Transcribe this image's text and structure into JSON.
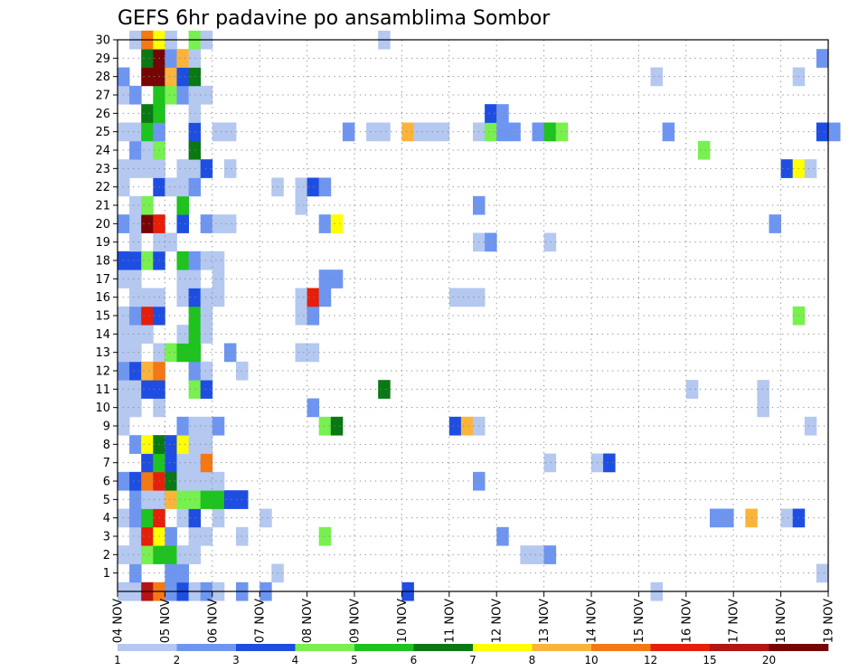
{
  "chart_data": {
    "type": "heatmap",
    "title": "GEFS 6hr padavine po ansamblima Sombor",
    "xlabel": "",
    "ylabel": "",
    "x_ticks": [
      "04 NOV",
      "05 NOV",
      "06 NOV",
      "07 NOV",
      "08 NOV",
      "09 NOV",
      "10 NOV",
      "11 NOV",
      "12 NOV",
      "13 NOV",
      "14 NOV",
      "15 NOV",
      "16 NOV",
      "17 NOV",
      "18 NOV",
      "19 NOV"
    ],
    "y_ticks": [
      "1",
      "2",
      "3",
      "4",
      "5",
      "6",
      "7",
      "8",
      "9",
      "10",
      "11",
      "12",
      "13",
      "14",
      "15",
      "16",
      "17",
      "18",
      "19",
      "20",
      "21",
      "22",
      "23",
      "24",
      "25",
      "26",
      "27",
      "28",
      "29",
      "30"
    ],
    "member_range": [
      0,
      30
    ],
    "time_steps_per_day": 4,
    "grid": true,
    "colorbar": {
      "placement": "bottom",
      "labels": [
        "1",
        "2",
        "3",
        "4",
        "5",
        "6",
        "7",
        "8",
        "10",
        "12",
        "15",
        "20"
      ],
      "colors": [
        "#b4c8f0",
        "#6e96f0",
        "#1e4ee1",
        "#78f050",
        "#1ec31e",
        "#0a7814",
        "#ffff00",
        "#fab43c",
        "#f57814",
        "#e61e0a",
        "#b41414",
        "#780505"
      ]
    },
    "cells": [
      {
        "m": 0,
        "t": 0,
        "c": 1
      },
      {
        "m": 0,
        "t": 1,
        "c": 1
      },
      {
        "m": 0,
        "t": 2,
        "c": 11
      },
      {
        "m": 0,
        "t": 3,
        "c": 9
      },
      {
        "m": 0,
        "t": 4,
        "c": 2
      },
      {
        "m": 0,
        "t": 5,
        "c": 3
      },
      {
        "m": 0,
        "t": 6,
        "c": 1
      },
      {
        "m": 0,
        "t": 7,
        "c": 2
      },
      {
        "m": 0,
        "t": 8,
        "c": 1
      },
      {
        "m": 0,
        "t": 10,
        "c": 2
      },
      {
        "m": 0,
        "t": 12,
        "c": 2
      },
      {
        "m": 0,
        "t": 24,
        "c": 3
      },
      {
        "m": 0,
        "t": 45,
        "c": 1
      },
      {
        "m": 1,
        "t": 1,
        "c": 2
      },
      {
        "m": 1,
        "t": 4,
        "c": 2
      },
      {
        "m": 1,
        "t": 5,
        "c": 2
      },
      {
        "m": 1,
        "t": 13,
        "c": 1
      },
      {
        "m": 1,
        "t": 59,
        "c": 1
      },
      {
        "m": 2,
        "t": 0,
        "c": 1
      },
      {
        "m": 2,
        "t": 1,
        "c": 1
      },
      {
        "m": 2,
        "t": 2,
        "c": 4
      },
      {
        "m": 2,
        "t": 3,
        "c": 5
      },
      {
        "m": 2,
        "t": 4,
        "c": 5
      },
      {
        "m": 2,
        "t": 5,
        "c": 1
      },
      {
        "m": 2,
        "t": 6,
        "c": 1
      },
      {
        "m": 2,
        "t": 34,
        "c": 1
      },
      {
        "m": 2,
        "t": 35,
        "c": 1
      },
      {
        "m": 2,
        "t": 36,
        "c": 2
      },
      {
        "m": 3,
        "t": 1,
        "c": 1
      },
      {
        "m": 3,
        "t": 2,
        "c": 10
      },
      {
        "m": 3,
        "t": 3,
        "c": 7
      },
      {
        "m": 3,
        "t": 4,
        "c": 2
      },
      {
        "m": 3,
        "t": 6,
        "c": 1
      },
      {
        "m": 3,
        "t": 7,
        "c": 1
      },
      {
        "m": 3,
        "t": 10,
        "c": 1
      },
      {
        "m": 3,
        "t": 17,
        "c": 4
      },
      {
        "m": 3,
        "t": 32,
        "c": 2
      },
      {
        "m": 4,
        "t": 0,
        "c": 1
      },
      {
        "m": 4,
        "t": 1,
        "c": 2
      },
      {
        "m": 4,
        "t": 2,
        "c": 5
      },
      {
        "m": 4,
        "t": 3,
        "c": 10
      },
      {
        "m": 4,
        "t": 5,
        "c": 1
      },
      {
        "m": 4,
        "t": 6,
        "c": 3
      },
      {
        "m": 4,
        "t": 8,
        "c": 1
      },
      {
        "m": 4,
        "t": 12,
        "c": 1
      },
      {
        "m": 4,
        "t": 50,
        "c": 2
      },
      {
        "m": 4,
        "t": 51,
        "c": 2
      },
      {
        "m": 4,
        "t": 53,
        "c": 8
      },
      {
        "m": 4,
        "t": 56,
        "c": 1
      },
      {
        "m": 4,
        "t": 57,
        "c": 3
      },
      {
        "m": 5,
        "t": 1,
        "c": 2
      },
      {
        "m": 5,
        "t": 2,
        "c": 1
      },
      {
        "m": 5,
        "t": 3,
        "c": 1
      },
      {
        "m": 5,
        "t": 4,
        "c": 8
      },
      {
        "m": 5,
        "t": 5,
        "c": 4
      },
      {
        "m": 5,
        "t": 6,
        "c": 4
      },
      {
        "m": 5,
        "t": 7,
        "c": 5
      },
      {
        "m": 5,
        "t": 8,
        "c": 5
      },
      {
        "m": 5,
        "t": 9,
        "c": 3
      },
      {
        "m": 5,
        "t": 10,
        "c": 3
      },
      {
        "m": 6,
        "t": 0,
        "c": 2
      },
      {
        "m": 6,
        "t": 1,
        "c": 3
      },
      {
        "m": 6,
        "t": 2,
        "c": 9
      },
      {
        "m": 6,
        "t": 3,
        "c": 10
      },
      {
        "m": 6,
        "t": 4,
        "c": 6
      },
      {
        "m": 6,
        "t": 5,
        "c": 1
      },
      {
        "m": 6,
        "t": 6,
        "c": 1
      },
      {
        "m": 6,
        "t": 7,
        "c": 1
      },
      {
        "m": 6,
        "t": 8,
        "c": 1
      },
      {
        "m": 6,
        "t": 30,
        "c": 2
      },
      {
        "m": 7,
        "t": 2,
        "c": 3
      },
      {
        "m": 7,
        "t": 3,
        "c": 5
      },
      {
        "m": 7,
        "t": 4,
        "c": 3
      },
      {
        "m": 7,
        "t": 5,
        "c": 1
      },
      {
        "m": 7,
        "t": 6,
        "c": 1
      },
      {
        "m": 7,
        "t": 7,
        "c": 9
      },
      {
        "m": 7,
        "t": 36,
        "c": 1
      },
      {
        "m": 7,
        "t": 40,
        "c": 1
      },
      {
        "m": 7,
        "t": 41,
        "c": 3
      },
      {
        "m": 8,
        "t": 1,
        "c": 2
      },
      {
        "m": 8,
        "t": 2,
        "c": 7
      },
      {
        "m": 8,
        "t": 3,
        "c": 6
      },
      {
        "m": 8,
        "t": 4,
        "c": 3
      },
      {
        "m": 8,
        "t": 5,
        "c": 7
      },
      {
        "m": 8,
        "t": 6,
        "c": 1
      },
      {
        "m": 8,
        "t": 7,
        "c": 1
      },
      {
        "m": 9,
        "t": 0,
        "c": 1
      },
      {
        "m": 9,
        "t": 5,
        "c": 2
      },
      {
        "m": 9,
        "t": 6,
        "c": 1
      },
      {
        "m": 9,
        "t": 7,
        "c": 1
      },
      {
        "m": 9,
        "t": 8,
        "c": 2
      },
      {
        "m": 9,
        "t": 17,
        "c": 4
      },
      {
        "m": 9,
        "t": 18,
        "c": 6
      },
      {
        "m": 9,
        "t": 28,
        "c": 3
      },
      {
        "m": 9,
        "t": 29,
        "c": 8
      },
      {
        "m": 9,
        "t": 30,
        "c": 1
      },
      {
        "m": 9,
        "t": 58,
        "c": 1
      },
      {
        "m": 10,
        "t": 0,
        "c": 1
      },
      {
        "m": 10,
        "t": 1,
        "c": 1
      },
      {
        "m": 10,
        "t": 3,
        "c": 1
      },
      {
        "m": 10,
        "t": 16,
        "c": 2
      },
      {
        "m": 10,
        "t": 54,
        "c": 1
      },
      {
        "m": 11,
        "t": 0,
        "c": 1
      },
      {
        "m": 11,
        "t": 1,
        "c": 1
      },
      {
        "m": 11,
        "t": 2,
        "c": 3
      },
      {
        "m": 11,
        "t": 3,
        "c": 3
      },
      {
        "m": 11,
        "t": 6,
        "c": 4
      },
      {
        "m": 11,
        "t": 7,
        "c": 3
      },
      {
        "m": 11,
        "t": 22,
        "c": 6
      },
      {
        "m": 11,
        "t": 48,
        "c": 1
      },
      {
        "m": 11,
        "t": 54,
        "c": 1
      },
      {
        "m": 12,
        "t": 0,
        "c": 2
      },
      {
        "m": 12,
        "t": 1,
        "c": 3
      },
      {
        "m": 12,
        "t": 2,
        "c": 8
      },
      {
        "m": 12,
        "t": 3,
        "c": 9
      },
      {
        "m": 12,
        "t": 6,
        "c": 2
      },
      {
        "m": 12,
        "t": 7,
        "c": 1
      },
      {
        "m": 12,
        "t": 10,
        "c": 1
      },
      {
        "m": 13,
        "t": 0,
        "c": 1
      },
      {
        "m": 13,
        "t": 1,
        "c": 1
      },
      {
        "m": 13,
        "t": 3,
        "c": 1
      },
      {
        "m": 13,
        "t": 4,
        "c": 4
      },
      {
        "m": 13,
        "t": 5,
        "c": 5
      },
      {
        "m": 13,
        "t": 6,
        "c": 5
      },
      {
        "m": 13,
        "t": 9,
        "c": 2
      },
      {
        "m": 13,
        "t": 15,
        "c": 1
      },
      {
        "m": 13,
        "t": 16,
        "c": 1
      },
      {
        "m": 14,
        "t": 0,
        "c": 1
      },
      {
        "m": 14,
        "t": 1,
        "c": 1
      },
      {
        "m": 14,
        "t": 2,
        "c": 1
      },
      {
        "m": 14,
        "t": 5,
        "c": 1
      },
      {
        "m": 14,
        "t": 6,
        "c": 5
      },
      {
        "m": 14,
        "t": 7,
        "c": 1
      },
      {
        "m": 15,
        "t": 0,
        "c": 1
      },
      {
        "m": 15,
        "t": 1,
        "c": 2
      },
      {
        "m": 15,
        "t": 2,
        "c": 10
      },
      {
        "m": 15,
        "t": 3,
        "c": 3
      },
      {
        "m": 15,
        "t": 6,
        "c": 5
      },
      {
        "m": 15,
        "t": 7,
        "c": 1
      },
      {
        "m": 15,
        "t": 15,
        "c": 1
      },
      {
        "m": 15,
        "t": 16,
        "c": 2
      },
      {
        "m": 15,
        "t": 57,
        "c": 4
      },
      {
        "m": 16,
        "t": 1,
        "c": 1
      },
      {
        "m": 16,
        "t": 2,
        "c": 1
      },
      {
        "m": 16,
        "t": 3,
        "c": 1
      },
      {
        "m": 16,
        "t": 5,
        "c": 1
      },
      {
        "m": 16,
        "t": 6,
        "c": 3
      },
      {
        "m": 16,
        "t": 7,
        "c": 1
      },
      {
        "m": 16,
        "t": 8,
        "c": 1
      },
      {
        "m": 16,
        "t": 15,
        "c": 1
      },
      {
        "m": 16,
        "t": 16,
        "c": 10
      },
      {
        "m": 16,
        "t": 17,
        "c": 2
      },
      {
        "m": 16,
        "t": 28,
        "c": 1
      },
      {
        "m": 16,
        "t": 29,
        "c": 1
      },
      {
        "m": 16,
        "t": 30,
        "c": 1
      },
      {
        "m": 17,
        "t": 0,
        "c": 1
      },
      {
        "m": 17,
        "t": 1,
        "c": 1
      },
      {
        "m": 17,
        "t": 5,
        "c": 1
      },
      {
        "m": 17,
        "t": 6,
        "c": 1
      },
      {
        "m": 17,
        "t": 8,
        "c": 1
      },
      {
        "m": 17,
        "t": 17,
        "c": 2
      },
      {
        "m": 17,
        "t": 18,
        "c": 2
      },
      {
        "m": 18,
        "t": 0,
        "c": 3
      },
      {
        "m": 18,
        "t": 1,
        "c": 3
      },
      {
        "m": 18,
        "t": 2,
        "c": 4
      },
      {
        "m": 18,
        "t": 3,
        "c": 3
      },
      {
        "m": 18,
        "t": 5,
        "c": 5
      },
      {
        "m": 18,
        "t": 6,
        "c": 2
      },
      {
        "m": 18,
        "t": 7,
        "c": 1
      },
      {
        "m": 18,
        "t": 8,
        "c": 1
      },
      {
        "m": 19,
        "t": 1,
        "c": 1
      },
      {
        "m": 19,
        "t": 3,
        "c": 1
      },
      {
        "m": 19,
        "t": 4,
        "c": 1
      },
      {
        "m": 19,
        "t": 30,
        "c": 1
      },
      {
        "m": 19,
        "t": 31,
        "c": 2
      },
      {
        "m": 19,
        "t": 36,
        "c": 1
      },
      {
        "m": 20,
        "t": 0,
        "c": 2
      },
      {
        "m": 20,
        "t": 1,
        "c": 1
      },
      {
        "m": 20,
        "t": 2,
        "c": 12
      },
      {
        "m": 20,
        "t": 3,
        "c": 10
      },
      {
        "m": 20,
        "t": 5,
        "c": 3
      },
      {
        "m": 20,
        "t": 7,
        "c": 2
      },
      {
        "m": 20,
        "t": 8,
        "c": 1
      },
      {
        "m": 20,
        "t": 9,
        "c": 1
      },
      {
        "m": 20,
        "t": 17,
        "c": 2
      },
      {
        "m": 20,
        "t": 18,
        "c": 7
      },
      {
        "m": 20,
        "t": 55,
        "c": 2
      },
      {
        "m": 21,
        "t": 1,
        "c": 1
      },
      {
        "m": 21,
        "t": 2,
        "c": 4
      },
      {
        "m": 21,
        "t": 5,
        "c": 5
      },
      {
        "m": 21,
        "t": 15,
        "c": 1
      },
      {
        "m": 21,
        "t": 30,
        "c": 2
      },
      {
        "m": 22,
        "t": 0,
        "c": 1
      },
      {
        "m": 22,
        "t": 3,
        "c": 3
      },
      {
        "m": 22,
        "t": 4,
        "c": 1
      },
      {
        "m": 22,
        "t": 5,
        "c": 1
      },
      {
        "m": 22,
        "t": 6,
        "c": 2
      },
      {
        "m": 22,
        "t": 13,
        "c": 1
      },
      {
        "m": 22,
        "t": 15,
        "c": 1
      },
      {
        "m": 22,
        "t": 16,
        "c": 3
      },
      {
        "m": 22,
        "t": 17,
        "c": 2
      },
      {
        "m": 23,
        "t": 0,
        "c": 1
      },
      {
        "m": 23,
        "t": 1,
        "c": 1
      },
      {
        "m": 23,
        "t": 2,
        "c": 1
      },
      {
        "m": 23,
        "t": 3,
        "c": 1
      },
      {
        "m": 23,
        "t": 5,
        "c": 1
      },
      {
        "m": 23,
        "t": 6,
        "c": 1
      },
      {
        "m": 23,
        "t": 7,
        "c": 3
      },
      {
        "m": 23,
        "t": 9,
        "c": 1
      },
      {
        "m": 23,
        "t": 56,
        "c": 3
      },
      {
        "m": 23,
        "t": 57,
        "c": 7
      },
      {
        "m": 23,
        "t": 58,
        "c": 1
      },
      {
        "m": 24,
        "t": 1,
        "c": 2
      },
      {
        "m": 24,
        "t": 2,
        "c": 1
      },
      {
        "m": 24,
        "t": 3,
        "c": 4
      },
      {
        "m": 24,
        "t": 6,
        "c": 6
      },
      {
        "m": 24,
        "t": 49,
        "c": 4
      },
      {
        "m": 25,
        "t": 0,
        "c": 1
      },
      {
        "m": 25,
        "t": 1,
        "c": 1
      },
      {
        "m": 25,
        "t": 2,
        "c": 5
      },
      {
        "m": 25,
        "t": 3,
        "c": 2
      },
      {
        "m": 25,
        "t": 6,
        "c": 3
      },
      {
        "m": 25,
        "t": 8,
        "c": 1
      },
      {
        "m": 25,
        "t": 9,
        "c": 1
      },
      {
        "m": 25,
        "t": 19,
        "c": 2
      },
      {
        "m": 25,
        "t": 21,
        "c": 1
      },
      {
        "m": 25,
        "t": 22,
        "c": 1
      },
      {
        "m": 25,
        "t": 24,
        "c": 8
      },
      {
        "m": 25,
        "t": 25,
        "c": 1
      },
      {
        "m": 25,
        "t": 26,
        "c": 1
      },
      {
        "m": 25,
        "t": 27,
        "c": 1
      },
      {
        "m": 25,
        "t": 30,
        "c": 1
      },
      {
        "m": 25,
        "t": 31,
        "c": 4
      },
      {
        "m": 25,
        "t": 32,
        "c": 2
      },
      {
        "m": 25,
        "t": 33,
        "c": 2
      },
      {
        "m": 25,
        "t": 35,
        "c": 2
      },
      {
        "m": 25,
        "t": 36,
        "c": 5
      },
      {
        "m": 25,
        "t": 37,
        "c": 4
      },
      {
        "m": 25,
        "t": 46,
        "c": 2
      },
      {
        "m": 25,
        "t": 59,
        "c": 3
      },
      {
        "m": 25,
        "t": 60,
        "c": 2
      },
      {
        "m": 26,
        "t": 2,
        "c": 6
      },
      {
        "m": 26,
        "t": 3,
        "c": 5
      },
      {
        "m": 26,
        "t": 6,
        "c": 1
      },
      {
        "m": 26,
        "t": 31,
        "c": 3
      },
      {
        "m": 26,
        "t": 32,
        "c": 2
      },
      {
        "m": 27,
        "t": 0,
        "c": 1
      },
      {
        "m": 27,
        "t": 1,
        "c": 2
      },
      {
        "m": 27,
        "t": 3,
        "c": 5
      },
      {
        "m": 27,
        "t": 4,
        "c": 4
      },
      {
        "m": 27,
        "t": 5,
        "c": 2
      },
      {
        "m": 27,
        "t": 6,
        "c": 1
      },
      {
        "m": 27,
        "t": 7,
        "c": 1
      },
      {
        "m": 28,
        "t": 0,
        "c": 2
      },
      {
        "m": 28,
        "t": 2,
        "c": 12
      },
      {
        "m": 28,
        "t": 3,
        "c": 12
      },
      {
        "m": 28,
        "t": 4,
        "c": 8
      },
      {
        "m": 28,
        "t": 5,
        "c": 3
      },
      {
        "m": 28,
        "t": 6,
        "c": 6
      },
      {
        "m": 28,
        "t": 45,
        "c": 1
      },
      {
        "m": 28,
        "t": 57,
        "c": 1
      },
      {
        "m": 29,
        "t": 2,
        "c": 6
      },
      {
        "m": 29,
        "t": 3,
        "c": 12
      },
      {
        "m": 29,
        "t": 4,
        "c": 2
      },
      {
        "m": 29,
        "t": 5,
        "c": 8
      },
      {
        "m": 29,
        "t": 6,
        "c": 1
      },
      {
        "m": 29,
        "t": 59,
        "c": 2
      },
      {
        "m": 30,
        "t": 1,
        "c": 1
      },
      {
        "m": 30,
        "t": 2,
        "c": 9
      },
      {
        "m": 30,
        "t": 3,
        "c": 7
      },
      {
        "m": 30,
        "t": 4,
        "c": 1
      },
      {
        "m": 30,
        "t": 6,
        "c": 4
      },
      {
        "m": 30,
        "t": 7,
        "c": 1
      },
      {
        "m": 30,
        "t": 22,
        "c": 1
      }
    ]
  }
}
